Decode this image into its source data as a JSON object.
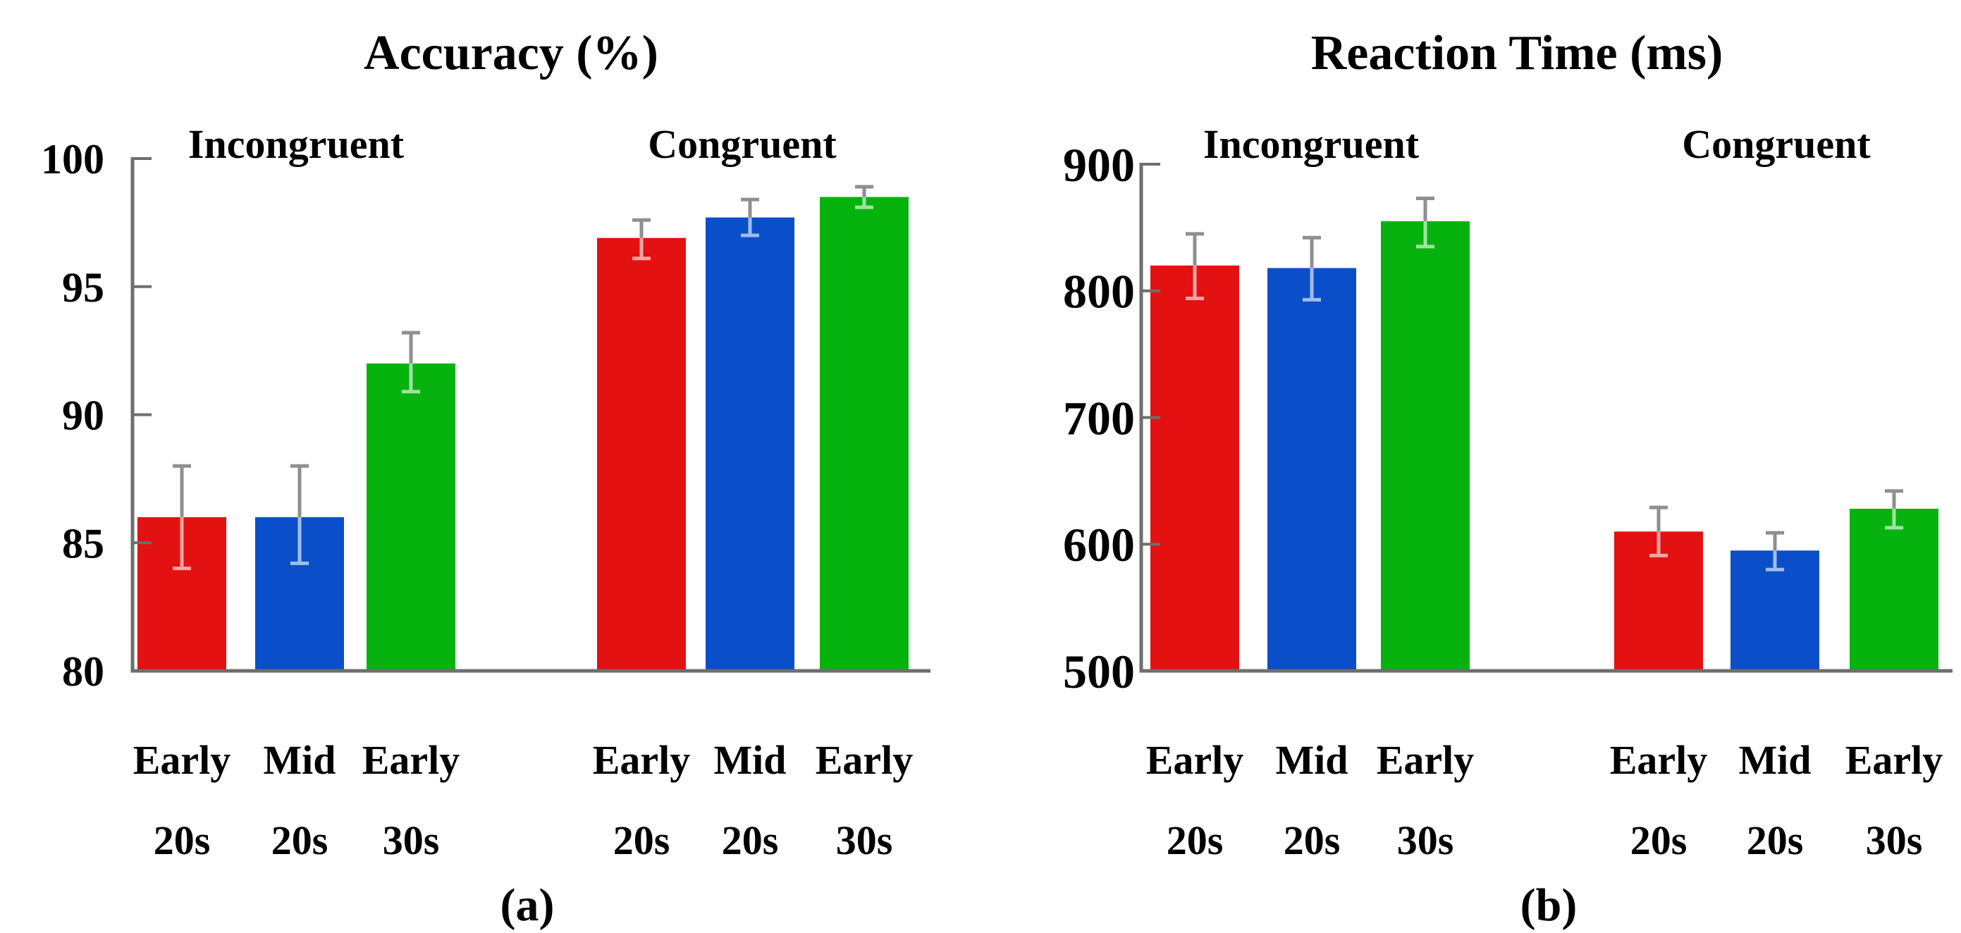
{
  "figure": {
    "background": "#ffffff",
    "captions": {
      "a": "(a)",
      "b": "(b)"
    }
  },
  "colors": {
    "red": "#e31111",
    "blue": "#0a4fc9",
    "green": "#06b30e",
    "error_bar": "#8f8f8f",
    "axis": "#6e6e6e",
    "text": "#000000"
  },
  "chart_data": [
    {
      "type": "bar",
      "panel": "a",
      "caption": "(a)",
      "title": "Accuracy (%)",
      "ylabel": "Accuracy (%)",
      "ylim": [
        80,
        100
      ],
      "yticks": [
        100,
        95,
        90,
        85,
        80
      ],
      "grid": false,
      "legend": "none",
      "groups": [
        {
          "label": "Incongruent",
          "bars": [
            {
              "label_top": "Early",
              "label_bottom": "20s",
              "color_key": "red",
              "value": 86.0,
              "err_low": 84.0,
              "err_high": 88.0
            },
            {
              "label_top": "Mid",
              "label_bottom": "20s",
              "color_key": "blue",
              "value": 86.0,
              "err_low": 84.2,
              "err_high": 88.0
            },
            {
              "label_top": "Early",
              "label_bottom": "30s",
              "color_key": "green",
              "value": 92.0,
              "err_low": 90.9,
              "err_high": 93.2
            }
          ]
        },
        {
          "label": "Congruent",
          "bars": [
            {
              "label_top": "Early",
              "label_bottom": "20s",
              "color_key": "red",
              "value": 96.9,
              "err_low": 96.1,
              "err_high": 97.6
            },
            {
              "label_top": "Mid",
              "label_bottom": "20s",
              "color_key": "blue",
              "value": 97.7,
              "err_low": 97.0,
              "err_high": 98.4
            },
            {
              "label_top": "Early",
              "label_bottom": "30s",
              "color_key": "green",
              "value": 98.5,
              "err_low": 98.1,
              "err_high": 98.9
            }
          ]
        }
      ]
    },
    {
      "type": "bar",
      "panel": "b",
      "caption": "(b)",
      "title": "Reaction Time (ms)",
      "ylabel": "Reaction Time (ms)",
      "ylim": [
        500,
        900
      ],
      "yticks": [
        900,
        800,
        700,
        600,
        500
      ],
      "grid": false,
      "legend": "none",
      "groups": [
        {
          "label": "Incongruent",
          "bars": [
            {
              "label_top": "Early",
              "label_bottom": "20s",
              "color_key": "red",
              "value": 820,
              "err_low": 794,
              "err_high": 845
            },
            {
              "label_top": "Mid",
              "label_bottom": "20s",
              "color_key": "blue",
              "value": 818,
              "err_low": 793,
              "err_high": 842
            },
            {
              "label_top": "Early",
              "label_bottom": "30s",
              "color_key": "green",
              "value": 855,
              "err_low": 835,
              "err_high": 873
            }
          ]
        },
        {
          "label": "Congruent",
          "bars": [
            {
              "label_top": "Early",
              "label_bottom": "20s",
              "color_key": "red",
              "value": 610,
              "err_low": 591,
              "err_high": 629
            },
            {
              "label_top": "Mid",
              "label_bottom": "20s",
              "color_key": "blue",
              "value": 595,
              "err_low": 580,
              "err_high": 609
            },
            {
              "label_top": "Early",
              "label_bottom": "30s",
              "color_key": "green",
              "value": 628,
              "err_low": 613,
              "err_high": 642
            }
          ]
        }
      ]
    }
  ]
}
